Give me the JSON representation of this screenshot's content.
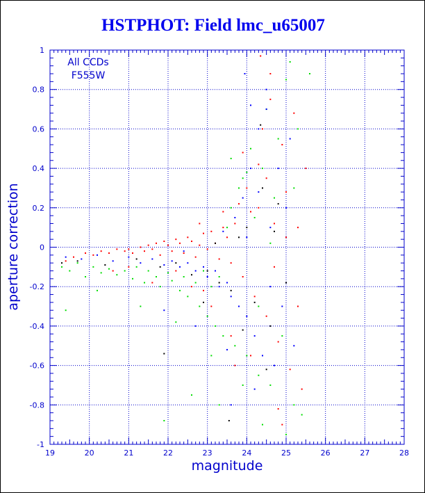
{
  "chart_data": {
    "type": "scatter",
    "title": "HSTPHOT: Field lmc_u65007",
    "xlabel": "magnitude",
    "ylabel": "aperture correction",
    "xlim": [
      19,
      28
    ],
    "ylim": [
      -1,
      1
    ],
    "x_ticks": [
      19,
      20,
      21,
      22,
      23,
      24,
      25,
      26,
      27,
      28
    ],
    "y_ticks": [
      -1,
      -0.8,
      -0.6,
      -0.4,
      -0.2,
      0,
      0.2,
      0.4,
      0.6,
      0.8,
      1
    ],
    "grid": true,
    "annotations": [
      "All CCDs",
      "F555W"
    ],
    "colors": {
      "axes": "#0000cc",
      "grid": "#0000cc",
      "title": "#0000ee",
      "point_colors": [
        "#ff0000",
        "#00dd00",
        "#0000ff",
        "#000000"
      ]
    },
    "point_color_order": [
      "red",
      "green",
      "blue",
      "black"
    ],
    "series": [
      {
        "name": "",
        "color": "#ff0000",
        "points": [
          [
            19.4,
            -0.07
          ],
          [
            19.6,
            -0.05
          ],
          [
            19.9,
            -0.03
          ],
          [
            20.1,
            -0.04
          ],
          [
            20.3,
            -0.02
          ],
          [
            20.5,
            -0.03
          ],
          [
            20.7,
            -0.01
          ],
          [
            20.9,
            -0.02
          ],
          [
            21.0,
            -0.01
          ],
          [
            21.1,
            -0.03
          ],
          [
            21.3,
            0.0
          ],
          [
            21.4,
            -0.02
          ],
          [
            21.5,
            0.01
          ],
          [
            21.6,
            -0.01
          ],
          [
            21.7,
            0.02
          ],
          [
            21.8,
            -0.04
          ],
          [
            21.9,
            0.03
          ],
          [
            22.0,
            0.01
          ],
          [
            22.1,
            -0.02
          ],
          [
            22.2,
            0.04
          ],
          [
            22.3,
            0.02
          ],
          [
            22.4,
            -0.03
          ],
          [
            22.5,
            0.05
          ],
          [
            22.6,
            0.03
          ],
          [
            22.7,
            -0.05
          ],
          [
            22.8,
            0.01
          ],
          [
            22.9,
            0.07
          ],
          [
            23.0,
            -0.01
          ],
          [
            23.1,
            0.08
          ],
          [
            23.2,
            0.02
          ],
          [
            23.3,
            -0.06
          ],
          [
            23.4,
            0.1
          ],
          [
            23.5,
            0.05
          ],
          [
            23.6,
            -0.08
          ],
          [
            23.7,
            0.12
          ],
          [
            23.8,
            0.22
          ],
          [
            23.9,
            -0.15
          ],
          [
            24.0,
            0.3
          ],
          [
            24.1,
            0.18
          ],
          [
            24.2,
            -0.25
          ],
          [
            24.3,
            0.42
          ],
          [
            24.4,
            0.6
          ],
          [
            24.5,
            -0.35
          ],
          [
            24.6,
            0.75
          ],
          [
            24.7,
            0.12
          ],
          [
            24.8,
            -0.48
          ],
          [
            24.9,
            0.52
          ],
          [
            25.0,
            0.28
          ],
          [
            25.1,
            -0.62
          ],
          [
            25.2,
            0.68
          ],
          [
            25.3,
            -0.3
          ],
          [
            25.4,
            -0.72
          ],
          [
            25.5,
            0.4
          ],
          [
            24.35,
            0.97
          ],
          [
            24.6,
            0.88
          ],
          [
            24.8,
            -0.82
          ],
          [
            23.6,
            -0.45
          ],
          [
            23.1,
            -0.3
          ],
          [
            22.6,
            -0.2
          ],
          [
            22.2,
            -0.12
          ],
          [
            21.6,
            -0.18
          ],
          [
            21.0,
            -0.1
          ],
          [
            20.6,
            -0.12
          ],
          [
            23.9,
            0.48
          ],
          [
            24.3,
            0.2
          ],
          [
            24.7,
            -0.1
          ],
          [
            25.0,
            0.05
          ],
          [
            23.4,
            0.18
          ],
          [
            22.9,
            -0.22
          ],
          [
            24.1,
            -0.55
          ],
          [
            24.9,
            -0.9
          ],
          [
            25.3,
            0.1
          ],
          [
            23.7,
            -0.6
          ],
          [
            24.5,
            0.35
          ],
          [
            22.8,
            0.12
          ]
        ]
      },
      {
        "name": "",
        "color": "#00dd00",
        "points": [
          [
            19.3,
            -0.1
          ],
          [
            19.5,
            -0.12
          ],
          [
            19.7,
            -0.08
          ],
          [
            19.9,
            -0.15
          ],
          [
            20.1,
            -0.1
          ],
          [
            20.3,
            -0.13
          ],
          [
            20.5,
            -0.11
          ],
          [
            20.7,
            -0.14
          ],
          [
            20.9,
            -0.12
          ],
          [
            21.1,
            -0.16
          ],
          [
            21.2,
            -0.1
          ],
          [
            21.4,
            -0.18
          ],
          [
            21.5,
            -0.12
          ],
          [
            21.7,
            -0.15
          ],
          [
            21.8,
            -0.2
          ],
          [
            22.0,
            -0.13
          ],
          [
            22.1,
            -0.17
          ],
          [
            22.3,
            -0.22
          ],
          [
            22.4,
            -0.15
          ],
          [
            22.5,
            -0.25
          ],
          [
            22.7,
            -0.18
          ],
          [
            22.8,
            -0.3
          ],
          [
            22.9,
            -0.12
          ],
          [
            23.0,
            -0.35
          ],
          [
            23.1,
            -0.2
          ],
          [
            23.2,
            -0.4
          ],
          [
            23.3,
            -0.15
          ],
          [
            23.4,
            -0.45
          ],
          [
            23.5,
            0.1
          ],
          [
            23.6,
            0.2
          ],
          [
            23.7,
            -0.5
          ],
          [
            23.8,
            0.3
          ],
          [
            23.9,
            0.35
          ],
          [
            24.0,
            -0.55
          ],
          [
            24.1,
            0.5
          ],
          [
            24.2,
            0.15
          ],
          [
            24.3,
            -0.65
          ],
          [
            24.4,
            0.4
          ],
          [
            24.5,
            0.7
          ],
          [
            24.6,
            -0.7
          ],
          [
            24.7,
            0.25
          ],
          [
            24.8,
            0.55
          ],
          [
            24.9,
            -0.45
          ],
          [
            25.0,
            0.85
          ],
          [
            25.1,
            0.94
          ],
          [
            25.2,
            -0.8
          ],
          [
            25.3,
            0.6
          ],
          [
            25.4,
            -0.85
          ],
          [
            25.6,
            0.88
          ],
          [
            21.9,
            -0.88
          ],
          [
            22.6,
            -0.75
          ],
          [
            23.3,
            -0.8
          ],
          [
            23.9,
            -0.7
          ],
          [
            24.4,
            -0.9
          ],
          [
            25.0,
            -0.95
          ],
          [
            19.4,
            -0.32
          ],
          [
            20.2,
            -0.22
          ],
          [
            21.3,
            -0.3
          ],
          [
            22.2,
            -0.38
          ],
          [
            23.6,
            0.45
          ],
          [
            24.0,
            0.38
          ],
          [
            24.6,
            0.02
          ],
          [
            25.2,
            0.3
          ],
          [
            24.3,
            -0.3
          ],
          [
            23.1,
            -0.55
          ]
        ]
      },
      {
        "name": "",
        "color": "#0000ff",
        "points": [
          [
            19.4,
            -0.05
          ],
          [
            19.8,
            -0.06
          ],
          [
            20.2,
            -0.04
          ],
          [
            20.6,
            -0.07
          ],
          [
            21.0,
            -0.05
          ],
          [
            21.3,
            -0.08
          ],
          [
            21.6,
            -0.06
          ],
          [
            21.9,
            -0.09
          ],
          [
            22.1,
            -0.07
          ],
          [
            22.3,
            -0.1
          ],
          [
            22.5,
            -0.08
          ],
          [
            22.7,
            -0.12
          ],
          [
            22.9,
            -0.1
          ],
          [
            23.0,
            -0.15
          ],
          [
            23.2,
            -0.12
          ],
          [
            23.3,
            -0.2
          ],
          [
            23.5,
            -0.18
          ],
          [
            23.6,
            -0.25
          ],
          [
            23.7,
            0.15
          ],
          [
            23.8,
            -0.3
          ],
          [
            23.9,
            0.25
          ],
          [
            24.0,
            -0.35
          ],
          [
            24.1,
            0.4
          ],
          [
            24.2,
            -0.45
          ],
          [
            24.3,
            0.6
          ],
          [
            24.4,
            -0.55
          ],
          [
            24.5,
            0.7
          ],
          [
            24.6,
            0.1
          ],
          [
            24.7,
            -0.6
          ],
          [
            24.8,
            0.4
          ],
          [
            24.9,
            -0.3
          ],
          [
            25.0,
            0.2
          ],
          [
            25.2,
            -0.5
          ],
          [
            24.1,
            0.72
          ],
          [
            24.5,
            0.8
          ],
          [
            23.95,
            0.88
          ],
          [
            24.2,
            -0.72
          ],
          [
            23.6,
            -0.8
          ],
          [
            23.5,
            -0.52
          ],
          [
            22.7,
            -0.4
          ],
          [
            21.9,
            -0.32
          ],
          [
            24.0,
            0.05
          ],
          [
            23.4,
            0.08
          ],
          [
            24.6,
            -0.2
          ],
          [
            25.1,
            0.55
          ],
          [
            24.3,
            0.28
          ],
          [
            22.4,
            -0.02
          ]
        ]
      },
      {
        "name": "",
        "color": "#000000",
        "points": [
          [
            19.3,
            -0.08
          ],
          [
            19.7,
            -0.07
          ],
          [
            20.4,
            -0.09
          ],
          [
            21.2,
            -0.06
          ],
          [
            21.8,
            -0.1
          ],
          [
            22.2,
            -0.08
          ],
          [
            22.6,
            -0.14
          ],
          [
            23.0,
            -0.12
          ],
          [
            23.3,
            -0.18
          ],
          [
            23.6,
            -0.22
          ],
          [
            23.8,
            0.05
          ],
          [
            24.0,
            0.1
          ],
          [
            24.2,
            -0.28
          ],
          [
            24.4,
            0.3
          ],
          [
            24.6,
            -0.4
          ],
          [
            24.8,
            0.22
          ],
          [
            25.0,
            -0.18
          ],
          [
            23.9,
            -0.42
          ],
          [
            24.5,
            -0.62
          ],
          [
            23.55,
            -0.88
          ],
          [
            24.35,
            0.62
          ],
          [
            22.9,
            -0.28
          ],
          [
            23.2,
            0.02
          ],
          [
            21.9,
            -0.54
          ],
          [
            24.7,
            0.08
          ]
        ]
      }
    ]
  }
}
